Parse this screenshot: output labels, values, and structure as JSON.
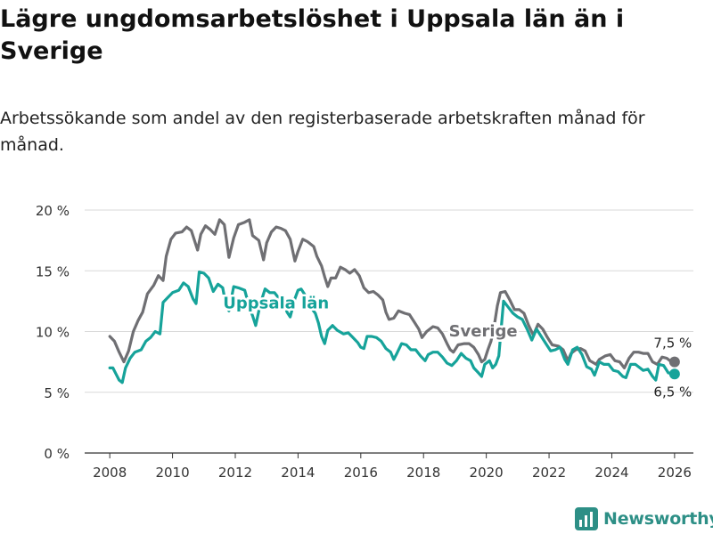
{
  "title": "Lägre ungdomsarbetslöshet i Uppsala län än i Sverige",
  "subtitle": "Arbetssökande som andel av den registerbaserade arbetskraften månad för månad.",
  "brand": {
    "name": "Newsworthy",
    "icon": "newsworthy-logo-icon",
    "color": "#2d8f86"
  },
  "chart_data": {
    "type": "line",
    "title": "Lägre ungdomsarbetslöshet i Uppsala län än i Sverige",
    "xlabel": "",
    "ylabel": "",
    "xlim": [
      2007.2,
      2026.6
    ],
    "ylim": [
      0,
      20
    ],
    "grid": true,
    "y_ticks": [
      0,
      5,
      10,
      15,
      20
    ],
    "y_tick_labels": [
      "0 %",
      "5 %",
      "10 %",
      "15 %",
      "20 %"
    ],
    "x_ticks": [
      2008,
      2010,
      2012,
      2014,
      2016,
      2018,
      2020,
      2022,
      2024,
      2026
    ],
    "x_tick_labels": [
      "2008",
      "2010",
      "2012",
      "2014",
      "2016",
      "2018",
      "2020",
      "2022",
      "2024",
      "2026"
    ],
    "series": [
      {
        "name": "Sverige",
        "label": "Sverige",
        "color": "#6f6f73",
        "last_label": "7,5 %",
        "points": [
          [
            2008.0,
            9.6
          ],
          [
            2008.15,
            9.2
          ],
          [
            2008.3,
            8.3
          ],
          [
            2008.45,
            7.5
          ],
          [
            2008.6,
            8.4
          ],
          [
            2008.75,
            10.0
          ],
          [
            2008.9,
            10.9
          ],
          [
            2009.05,
            11.6
          ],
          [
            2009.2,
            13.1
          ],
          [
            2009.4,
            13.8
          ],
          [
            2009.55,
            14.6
          ],
          [
            2009.7,
            14.2
          ],
          [
            2009.8,
            16.2
          ],
          [
            2009.95,
            17.6
          ],
          [
            2010.1,
            18.1
          ],
          [
            2010.3,
            18.2
          ],
          [
            2010.45,
            18.6
          ],
          [
            2010.6,
            18.3
          ],
          [
            2010.8,
            16.7
          ],
          [
            2010.9,
            18.0
          ],
          [
            2011.05,
            18.7
          ],
          [
            2011.2,
            18.4
          ],
          [
            2011.35,
            18.0
          ],
          [
            2011.5,
            19.2
          ],
          [
            2011.65,
            18.8
          ],
          [
            2011.8,
            16.1
          ],
          [
            2011.95,
            17.7
          ],
          [
            2012.1,
            18.8
          ],
          [
            2012.3,
            19.0
          ],
          [
            2012.45,
            19.2
          ],
          [
            2012.55,
            17.9
          ],
          [
            2012.75,
            17.5
          ],
          [
            2012.9,
            15.9
          ],
          [
            2013.0,
            17.3
          ],
          [
            2013.15,
            18.2
          ],
          [
            2013.3,
            18.6
          ],
          [
            2013.45,
            18.5
          ],
          [
            2013.6,
            18.3
          ],
          [
            2013.75,
            17.6
          ],
          [
            2013.9,
            15.8
          ],
          [
            2014.0,
            16.6
          ],
          [
            2014.15,
            17.6
          ],
          [
            2014.3,
            17.4
          ],
          [
            2014.5,
            17.0
          ],
          [
            2014.6,
            16.2
          ],
          [
            2014.75,
            15.4
          ],
          [
            2014.85,
            14.5
          ],
          [
            2014.95,
            13.7
          ],
          [
            2015.05,
            14.4
          ],
          [
            2015.2,
            14.4
          ],
          [
            2015.35,
            15.3
          ],
          [
            2015.5,
            15.1
          ],
          [
            2015.65,
            14.8
          ],
          [
            2015.8,
            15.1
          ],
          [
            2015.95,
            14.6
          ],
          [
            2016.1,
            13.6
          ],
          [
            2016.25,
            13.2
          ],
          [
            2016.4,
            13.3
          ],
          [
            2016.55,
            13.0
          ],
          [
            2016.7,
            12.6
          ],
          [
            2016.8,
            11.6
          ],
          [
            2016.9,
            11.0
          ],
          [
            2017.05,
            11.1
          ],
          [
            2017.2,
            11.7
          ],
          [
            2017.4,
            11.5
          ],
          [
            2017.55,
            11.4
          ],
          [
            2017.7,
            10.8
          ],
          [
            2017.85,
            10.2
          ],
          [
            2017.95,
            9.5
          ],
          [
            2018.1,
            10.0
          ],
          [
            2018.3,
            10.4
          ],
          [
            2018.45,
            10.3
          ],
          [
            2018.6,
            9.8
          ],
          [
            2018.75,
            9.0
          ],
          [
            2018.85,
            8.5
          ],
          [
            2018.95,
            8.3
          ],
          [
            2019.1,
            8.9
          ],
          [
            2019.3,
            9.0
          ],
          [
            2019.45,
            9.0
          ],
          [
            2019.6,
            8.7
          ],
          [
            2019.75,
            8.1
          ],
          [
            2019.85,
            7.5
          ],
          [
            2019.95,
            7.7
          ],
          [
            2020.05,
            8.5
          ],
          [
            2020.15,
            9.2
          ],
          [
            2020.25,
            10.4
          ],
          [
            2020.35,
            12.1
          ],
          [
            2020.45,
            13.2
          ],
          [
            2020.6,
            13.3
          ],
          [
            2020.75,
            12.6
          ],
          [
            2020.9,
            11.8
          ],
          [
            2021.05,
            11.8
          ],
          [
            2021.2,
            11.5
          ],
          [
            2021.35,
            10.5
          ],
          [
            2021.5,
            9.7
          ],
          [
            2021.65,
            10.6
          ],
          [
            2021.8,
            10.2
          ],
          [
            2021.95,
            9.5
          ],
          [
            2022.1,
            8.9
          ],
          [
            2022.3,
            8.8
          ],
          [
            2022.45,
            8.5
          ],
          [
            2022.6,
            7.6
          ],
          [
            2022.7,
            8.2
          ],
          [
            2022.85,
            8.5
          ],
          [
            2023.0,
            8.6
          ],
          [
            2023.15,
            8.4
          ],
          [
            2023.3,
            7.6
          ],
          [
            2023.5,
            7.3
          ],
          [
            2023.6,
            7.7
          ],
          [
            2023.8,
            8.0
          ],
          [
            2023.95,
            8.1
          ],
          [
            2024.1,
            7.6
          ],
          [
            2024.25,
            7.5
          ],
          [
            2024.4,
            7.0
          ],
          [
            2024.55,
            7.8
          ],
          [
            2024.7,
            8.3
          ],
          [
            2024.85,
            8.3
          ],
          [
            2025.0,
            8.2
          ],
          [
            2025.15,
            8.2
          ],
          [
            2025.3,
            7.5
          ],
          [
            2025.45,
            7.3
          ],
          [
            2025.6,
            7.9
          ],
          [
            2025.75,
            7.8
          ],
          [
            2025.9,
            7.5
          ],
          [
            2026.0,
            7.5
          ]
        ]
      },
      {
        "name": "Uppsala län",
        "label": "Uppsala län",
        "color": "#16a39a",
        "last_label": "6,5 %",
        "points": [
          [
            2008.0,
            7.0
          ],
          [
            2008.1,
            7.0
          ],
          [
            2008.2,
            6.5
          ],
          [
            2008.3,
            6.0
          ],
          [
            2008.4,
            5.8
          ],
          [
            2008.5,
            7.0
          ],
          [
            2008.65,
            7.8
          ],
          [
            2008.8,
            8.3
          ],
          [
            2009.0,
            8.5
          ],
          [
            2009.15,
            9.2
          ],
          [
            2009.3,
            9.5
          ],
          [
            2009.45,
            10.0
          ],
          [
            2009.6,
            9.8
          ],
          [
            2009.7,
            12.4
          ],
          [
            2009.85,
            12.8
          ],
          [
            2010.0,
            13.2
          ],
          [
            2010.2,
            13.4
          ],
          [
            2010.35,
            14.0
          ],
          [
            2010.5,
            13.7
          ],
          [
            2010.65,
            12.7
          ],
          [
            2010.75,
            12.3
          ],
          [
            2010.85,
            14.9
          ],
          [
            2011.0,
            14.8
          ],
          [
            2011.15,
            14.4
          ],
          [
            2011.3,
            13.3
          ],
          [
            2011.45,
            13.9
          ],
          [
            2011.6,
            13.6
          ],
          [
            2011.7,
            12.2
          ],
          [
            2011.8,
            11.7
          ],
          [
            2011.95,
            13.7
          ],
          [
            2012.1,
            13.6
          ],
          [
            2012.3,
            13.4
          ],
          [
            2012.45,
            12.0
          ],
          [
            2012.55,
            11.3
          ],
          [
            2012.65,
            10.5
          ],
          [
            2012.8,
            12.3
          ],
          [
            2012.95,
            13.5
          ],
          [
            2013.1,
            13.2
          ],
          [
            2013.25,
            13.2
          ],
          [
            2013.4,
            12.7
          ],
          [
            2013.5,
            12.7
          ],
          [
            2013.65,
            11.6
          ],
          [
            2013.75,
            11.2
          ],
          [
            2013.9,
            12.7
          ],
          [
            2014.0,
            13.4
          ],
          [
            2014.1,
            13.5
          ],
          [
            2014.25,
            12.9
          ],
          [
            2014.4,
            12.0
          ],
          [
            2014.55,
            11.5
          ],
          [
            2014.65,
            10.7
          ],
          [
            2014.75,
            9.6
          ],
          [
            2014.85,
            9.0
          ],
          [
            2014.95,
            10.1
          ],
          [
            2015.1,
            10.5
          ],
          [
            2015.25,
            10.1
          ],
          [
            2015.45,
            9.8
          ],
          [
            2015.6,
            9.9
          ],
          [
            2015.75,
            9.5
          ],
          [
            2015.9,
            9.1
          ],
          [
            2016.0,
            8.7
          ],
          [
            2016.1,
            8.6
          ],
          [
            2016.2,
            9.6
          ],
          [
            2016.35,
            9.6
          ],
          [
            2016.5,
            9.5
          ],
          [
            2016.65,
            9.2
          ],
          [
            2016.8,
            8.6
          ],
          [
            2016.95,
            8.3
          ],
          [
            2017.05,
            7.7
          ],
          [
            2017.15,
            8.2
          ],
          [
            2017.3,
            9.0
          ],
          [
            2017.45,
            8.9
          ],
          [
            2017.6,
            8.5
          ],
          [
            2017.75,
            8.5
          ],
          [
            2017.9,
            8.0
          ],
          [
            2018.05,
            7.6
          ],
          [
            2018.15,
            8.1
          ],
          [
            2018.3,
            8.3
          ],
          [
            2018.45,
            8.3
          ],
          [
            2018.6,
            7.9
          ],
          [
            2018.75,
            7.4
          ],
          [
            2018.9,
            7.2
          ],
          [
            2019.05,
            7.6
          ],
          [
            2019.2,
            8.2
          ],
          [
            2019.35,
            7.8
          ],
          [
            2019.5,
            7.6
          ],
          [
            2019.6,
            7.0
          ],
          [
            2019.75,
            6.6
          ],
          [
            2019.85,
            6.3
          ],
          [
            2019.95,
            7.3
          ],
          [
            2020.1,
            7.6
          ],
          [
            2020.2,
            7.0
          ],
          [
            2020.3,
            7.3
          ],
          [
            2020.4,
            8.0
          ],
          [
            2020.55,
            12.5
          ],
          [
            2020.7,
            12.0
          ],
          [
            2020.85,
            11.5
          ],
          [
            2021.0,
            11.2
          ],
          [
            2021.15,
            11.0
          ],
          [
            2021.3,
            10.2
          ],
          [
            2021.45,
            9.3
          ],
          [
            2021.6,
            10.2
          ],
          [
            2021.75,
            9.6
          ],
          [
            2021.9,
            9.0
          ],
          [
            2022.05,
            8.4
          ],
          [
            2022.2,
            8.5
          ],
          [
            2022.35,
            8.7
          ],
          [
            2022.5,
            7.7
          ],
          [
            2022.6,
            7.3
          ],
          [
            2022.75,
            8.5
          ],
          [
            2022.9,
            8.7
          ],
          [
            2023.05,
            8.1
          ],
          [
            2023.2,
            7.1
          ],
          [
            2023.35,
            6.9
          ],
          [
            2023.45,
            6.4
          ],
          [
            2023.6,
            7.5
          ],
          [
            2023.75,
            7.3
          ],
          [
            2023.9,
            7.3
          ],
          [
            2024.05,
            6.8
          ],
          [
            2024.2,
            6.7
          ],
          [
            2024.35,
            6.3
          ],
          [
            2024.45,
            6.2
          ],
          [
            2024.6,
            7.3
          ],
          [
            2024.75,
            7.3
          ],
          [
            2024.9,
            7.0
          ],
          [
            2025.0,
            6.8
          ],
          [
            2025.15,
            6.9
          ],
          [
            2025.3,
            6.3
          ],
          [
            2025.4,
            6.0
          ],
          [
            2025.5,
            7.3
          ],
          [
            2025.65,
            7.2
          ],
          [
            2025.8,
            6.6
          ],
          [
            2026.0,
            6.5
          ]
        ]
      }
    ]
  }
}
